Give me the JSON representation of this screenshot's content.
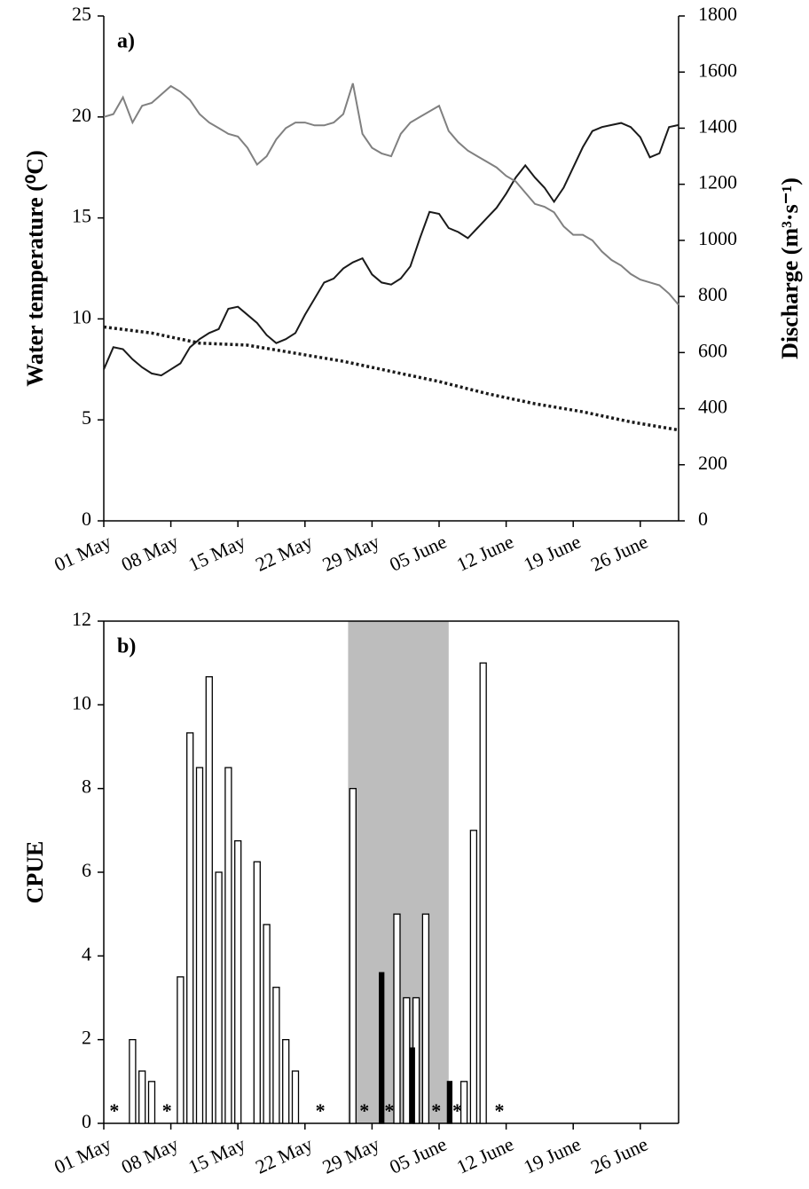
{
  "chart_data": [
    {
      "type": "line",
      "panel_label": "a)",
      "y_label": "Water temperature (⁰C)",
      "y2_label": "Discharge (m³·s⁻¹)",
      "xlim": [
        0,
        60
      ],
      "xticks": [
        {
          "value": 0,
          "label": "01 May"
        },
        {
          "value": 7,
          "label": "08 May"
        },
        {
          "value": 14,
          "label": "15 May"
        },
        {
          "value": 21,
          "label": "22 May"
        },
        {
          "value": 28,
          "label": "29 May"
        },
        {
          "value": 35,
          "label": "05 June"
        },
        {
          "value": 42,
          "label": "12 June"
        },
        {
          "value": 49,
          "label": "19 June"
        },
        {
          "value": 56,
          "label": "26 June"
        }
      ],
      "ylim": [
        0,
        25
      ],
      "yticks": [
        0,
        5,
        10,
        15,
        20,
        25
      ],
      "y2lim": [
        0,
        1800
      ],
      "y2ticks": [
        0,
        200,
        400,
        600,
        800,
        1000,
        1200,
        1400,
        1600,
        1800
      ],
      "x": [
        0,
        1,
        2,
        3,
        4,
        5,
        6,
        7,
        8,
        9,
        10,
        11,
        12,
        13,
        14,
        15,
        16,
        17,
        18,
        19,
        20,
        21,
        22,
        23,
        24,
        25,
        26,
        27,
        28,
        29,
        30,
        31,
        32,
        33,
        34,
        35,
        36,
        37,
        38,
        39,
        40,
        41,
        42,
        43,
        44,
        45,
        46,
        47,
        48,
        49,
        50,
        51,
        52,
        53,
        54,
        55,
        56,
        57,
        58,
        59,
        60
      ],
      "series": [
        {
          "color": "#1a1a1a",
          "values": [
            7.5,
            8.6,
            8.5,
            8.0,
            7.6,
            7.3,
            7.2,
            7.5,
            7.8,
            8.6,
            9.0,
            9.3,
            9.5,
            10.5,
            10.6,
            10.2,
            9.8,
            9.2,
            8.8,
            9.0,
            9.3,
            10.2,
            11.0,
            11.8,
            12.0,
            12.5,
            12.8,
            13.0,
            12.2,
            11.8,
            11.7,
            12.0,
            12.6,
            14.0,
            15.3,
            15.2,
            14.5,
            14.3,
            14.0,
            14.5,
            15.0,
            15.5,
            16.2,
            17.0,
            17.6,
            17.0,
            16.5,
            15.8,
            16.5,
            17.5,
            18.5,
            19.3,
            19.5,
            19.6,
            19.7,
            19.5,
            19.0,
            18.0,
            18.2,
            19.5,
            19.6
          ]
        },
        {
          "color": "#808080",
          "axis": "y2",
          "values": [
            1440,
            1450,
            1510,
            1420,
            1480,
            1490,
            1520,
            1550,
            1530,
            1500,
            1450,
            1420,
            1400,
            1380,
            1370,
            1330,
            1270,
            1300,
            1360,
            1400,
            1420,
            1420,
            1410,
            1410,
            1420,
            1450,
            1560,
            1380,
            1330,
            1310,
            1300,
            1380,
            1420,
            1440,
            1460,
            1480,
            1390,
            1350,
            1320,
            1300,
            1280,
            1260,
            1230,
            1210,
            1170,
            1130,
            1120,
            1100,
            1050,
            1020,
            1020,
            1000,
            960,
            930,
            910,
            880,
            860,
            850,
            840,
            810,
            770
          ]
        },
        {
          "color": "#1a1a1a",
          "dash": "dotted",
          "x": [
            0,
            5,
            10,
            15,
            20,
            25,
            30,
            35,
            40,
            45,
            50,
            55,
            60
          ],
          "values": [
            9.6,
            9.3,
            8.8,
            8.7,
            8.3,
            7.9,
            7.4,
            6.9,
            6.3,
            5.8,
            5.4,
            4.9,
            4.5
          ]
        }
      ]
    },
    {
      "type": "bar",
      "panel_label": "b)",
      "y_label": "CPUE",
      "xlim": [
        0,
        60
      ],
      "xticks": [
        {
          "value": 0,
          "label": "01 May"
        },
        {
          "value": 7,
          "label": "08 May"
        },
        {
          "value": 14,
          "label": "15 May"
        },
        {
          "value": 21,
          "label": "22 May"
        },
        {
          "value": 28,
          "label": "29 May"
        },
        {
          "value": 35,
          "label": "05 June"
        },
        {
          "value": 42,
          "label": "12 June"
        },
        {
          "value": 49,
          "label": "19 June"
        },
        {
          "value": 56,
          "label": "26 June"
        }
      ],
      "ylim": [
        0,
        12
      ],
      "yticks": [
        0,
        2,
        4,
        6,
        8,
        10,
        12
      ],
      "shaded_span": [
        25.5,
        36
      ],
      "series": [
        {
          "color": "#ffffff",
          "x": [
            3,
            4,
            5,
            8,
            9,
            10,
            11,
            12,
            13,
            14,
            16,
            17,
            18,
            19,
            20,
            26,
            30.6,
            31.6,
            32.6,
            33.6,
            37.6,
            38.6,
            39.6
          ],
          "values": [
            2,
            1.25,
            1,
            3.5,
            9.33,
            8.5,
            10.67,
            6,
            8.5,
            6.75,
            6.25,
            4.75,
            3.25,
            2,
            1.25,
            8,
            5,
            3,
            3,
            5,
            1,
            7,
            11
          ]
        },
        {
          "color": "#000000",
          "x": [
            29,
            32.2,
            36.1
          ],
          "values": [
            3.6,
            1.8,
            1
          ]
        }
      ],
      "annotations": [
        {
          "text": "*",
          "x": 1.1
        },
        {
          "text": "*",
          "x": 6.6
        },
        {
          "text": "*",
          "x": 22.6
        },
        {
          "text": "*",
          "x": 27.2
        },
        {
          "text": "*",
          "x": 29.8
        },
        {
          "text": "*",
          "x": 34.7
        },
        {
          "text": "*",
          "x": 36.9
        },
        {
          "text": "*",
          "x": 41.3
        }
      ]
    }
  ]
}
